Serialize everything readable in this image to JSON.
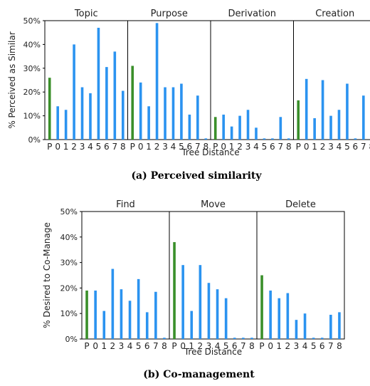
{
  "colors": {
    "P": "#3a8f2a",
    "bar": "#2b93f0",
    "frame": "#000000",
    "axis_text": "#222222",
    "p_label": "#3a8f2a"
  },
  "chart_data": [
    {
      "type": "bar",
      "caption": "(a) Perceived similarity",
      "ylabel": "% Perceived as Similar",
      "xlabel": "Tree Distance",
      "ylim": [
        0,
        50
      ],
      "yticks": [
        "0%",
        "10%",
        "20%",
        "30%",
        "40%",
        "50%"
      ],
      "ytick_values": [
        0,
        10,
        20,
        30,
        40,
        50
      ],
      "categories": [
        "P",
        "0",
        "1",
        "2",
        "3",
        "4",
        "5",
        "6",
        "7",
        "8"
      ],
      "panels": [
        {
          "title": "Topic",
          "values": [
            26,
            14,
            12.5,
            40,
            22,
            19.5,
            47,
            30.5,
            37,
            20.5
          ]
        },
        {
          "title": "Purpose",
          "values": [
            31,
            24,
            14,
            49,
            22,
            22,
            23.5,
            10.5,
            18.5,
            0.5
          ]
        },
        {
          "title": "Derivation",
          "values": [
            9.5,
            10.5,
            5.5,
            10,
            12.5,
            5,
            0.5,
            0.5,
            9.5,
            0.5
          ]
        },
        {
          "title": "Creation",
          "values": [
            16.5,
            25.5,
            9,
            25,
            10,
            12.5,
            23.5,
            0.5,
            18.5,
            0.5
          ]
        }
      ]
    },
    {
      "type": "bar",
      "caption": "(b) Co-management",
      "ylabel": "% Desired to Co-Manage",
      "xlabel": "Tree Distance",
      "ylim": [
        0,
        50
      ],
      "yticks": [
        "0%",
        "10%",
        "20%",
        "30%",
        "40%",
        "50%"
      ],
      "ytick_values": [
        0,
        10,
        20,
        30,
        40,
        50
      ],
      "categories": [
        "P",
        "0",
        "1",
        "2",
        "3",
        "4",
        "5",
        "6",
        "7",
        "8"
      ],
      "panels": [
        {
          "title": "Find",
          "values": [
            19,
            19,
            11,
            27.5,
            19.5,
            15,
            23.5,
            10.5,
            18.5,
            0.5
          ]
        },
        {
          "title": "Move",
          "values": [
            38,
            29,
            11,
            29,
            22,
            19.5,
            16,
            0.5,
            0.5,
            0.5
          ]
        },
        {
          "title": "Delete",
          "values": [
            25,
            19,
            16,
            18,
            7.5,
            10,
            0.5,
            0.5,
            9.5,
            10.5
          ]
        }
      ]
    }
  ]
}
